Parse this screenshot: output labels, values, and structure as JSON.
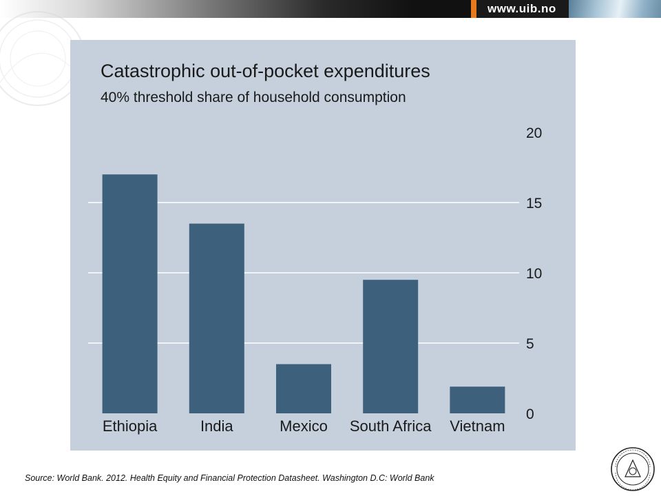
{
  "banner": {
    "url_text": "www.uib.no"
  },
  "colors": {
    "panel_bg": "#c5d0dc",
    "bar": "#3d607c",
    "gridline": "#ffffff",
    "accent_orange": "#e8791c"
  },
  "chart_data": {
    "type": "bar",
    "title": "Catastrophic out-of-pocket expenditures",
    "subtitle": "40% threshold share of household consumption",
    "categories": [
      "Ethiopia",
      "India",
      "Mexico",
      "South Africa",
      "Vietnam"
    ],
    "values": [
      17.0,
      13.5,
      3.5,
      9.5,
      1.9
    ],
    "ylim": [
      0,
      20
    ],
    "yticks": [
      "0",
      "5",
      "10",
      "15",
      "20"
    ],
    "ytick_values": [
      0,
      5,
      10,
      15,
      20
    ],
    "y_axis_side": "right",
    "grid": true
  },
  "footer": {
    "source": "Source: World Bank. 2012. Health Equity and Financial Protection Datasheet. Washington D.C: World Bank"
  },
  "icons": {
    "seal": "university-seal-icon",
    "watermark": "seal-watermark-icon"
  }
}
